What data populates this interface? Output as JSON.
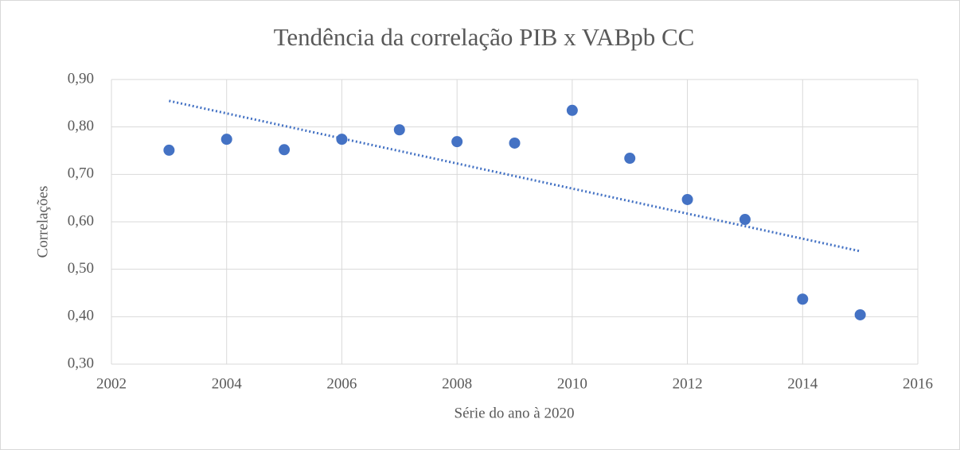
{
  "chart_data": {
    "type": "scatter",
    "title": "Tendência da correlação PIB x VABpb CC",
    "x_label": "Série do ano à 2020",
    "y_label": "Correlações",
    "x": [
      2003,
      2004,
      2005,
      2006,
      2007,
      2008,
      2009,
      2010,
      2011,
      2012,
      2013,
      2014,
      2015
    ],
    "series": [
      {
        "name": "Correlações",
        "color": "#4472c4",
        "values": [
          0.751,
          0.774,
          0.752,
          0.774,
          0.794,
          0.769,
          0.766,
          0.835,
          0.734,
          0.647,
          0.605,
          0.437,
          0.404
        ]
      }
    ],
    "trendline": {
      "color": "#4472c4",
      "x": [
        2003,
        2015
      ],
      "values": [
        0.855,
        0.538
      ]
    },
    "xlim": [
      2002,
      2016
    ],
    "xticks": [
      2002,
      2004,
      2006,
      2008,
      2010,
      2012,
      2014,
      2016
    ],
    "ylim": [
      0.3,
      0.9
    ],
    "yticks": [
      {
        "value": 0.3,
        "label": "0,30"
      },
      {
        "value": 0.4,
        "label": "0,40"
      },
      {
        "value": 0.5,
        "label": "0,50"
      },
      {
        "value": 0.6,
        "label": "0,60"
      },
      {
        "value": 0.7,
        "label": "0,70"
      },
      {
        "value": 0.8,
        "label": "0,80"
      },
      {
        "value": 0.9,
        "label": "0,90"
      }
    ],
    "grid": true
  }
}
